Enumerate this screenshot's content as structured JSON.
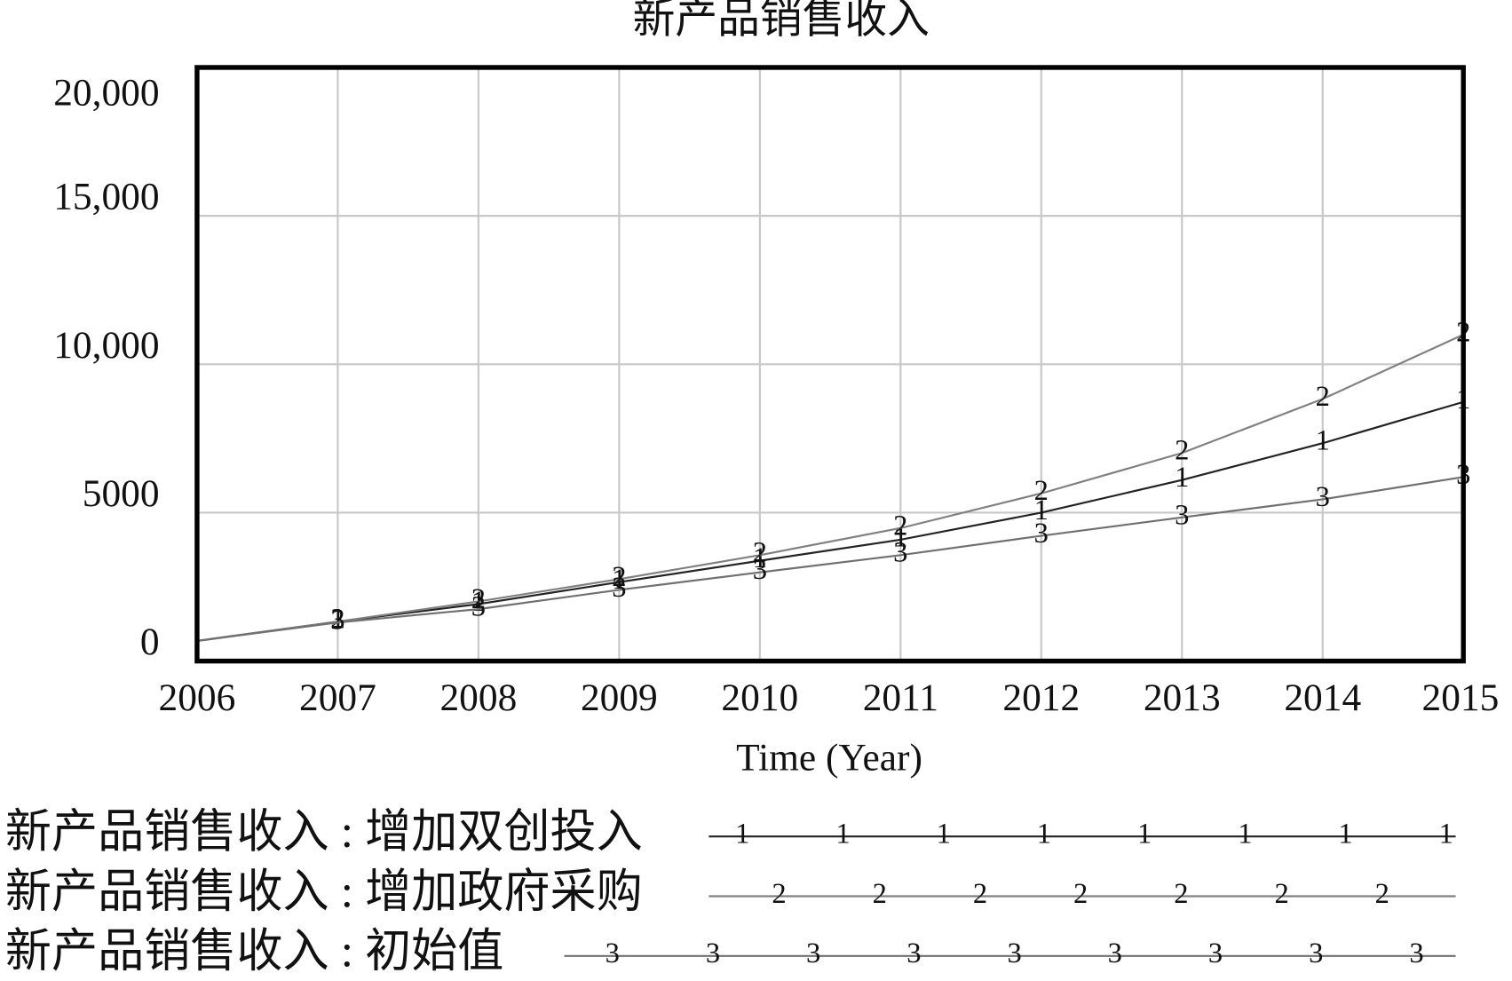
{
  "chart_data": {
    "type": "line",
    "title": "新产品销售收入",
    "x_label": "Time (Year)",
    "x": [
      2006,
      2007,
      2008,
      2009,
      2010,
      2011,
      2012,
      2013,
      2014,
      2015
    ],
    "xlim": [
      2006,
      2015
    ],
    "xticks": [
      2006,
      2007,
      2008,
      2009,
      2010,
      2011,
      2012,
      2013,
      2014,
      2015
    ],
    "ylim": [
      0,
      20000
    ],
    "yticks": [
      0,
      5000,
      {
        "value": 10000,
        "label": "10,000"
      },
      {
        "value": 15000,
        "label": "15,000"
      },
      {
        "value": 20000,
        "label": "20,000"
      }
    ],
    "grid": true,
    "series": [
      {
        "name": "新产品销售收入 : 增加双创投入",
        "label": "1",
        "color": "#222222",
        "values": [
          680,
          1330,
          1920,
          2660,
          3380,
          4090,
          5000,
          6100,
          7340,
          8730
        ]
      },
      {
        "name": "新产品销售收入 : 增加政府采购",
        "label": "2",
        "color": "#808080",
        "values": [
          680,
          1330,
          2010,
          2760,
          3570,
          4480,
          5650,
          7010,
          8830,
          11000
        ]
      },
      {
        "name": "新产品销售收入 : 初始值",
        "label": "3",
        "color": "#707070",
        "values": [
          680,
          1300,
          1750,
          2400,
          2990,
          3570,
          4220,
          4840,
          5450,
          6200
        ]
      }
    ]
  }
}
